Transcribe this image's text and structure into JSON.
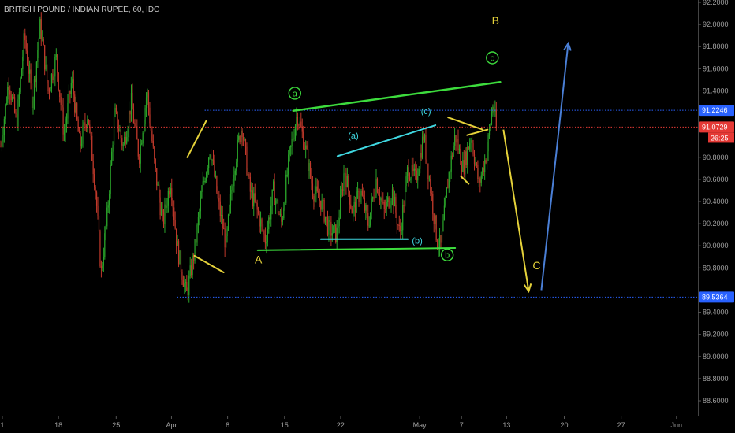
{
  "header": {
    "title": "BRITISH POUND / INDIAN RUPEE, 60, IDC"
  },
  "chart_data": {
    "type": "candlestick",
    "title": "BRITISH POUND / INDIAN RUPEE, 60, IDC",
    "ylim": [
      88.55,
      92.2
    ],
    "xlim": [
      0,
      88
    ],
    "y_ticks": [
      {
        "v": 92.2,
        "label": "92.2000"
      },
      {
        "v": 92.0,
        "label": "92.0000"
      },
      {
        "v": 91.8,
        "label": "91.8000"
      },
      {
        "v": 91.6,
        "label": "91.6000"
      },
      {
        "v": 91.4,
        "label": "91.4000"
      },
      {
        "v": 90.8,
        "label": "90.8000"
      },
      {
        "v": 90.6,
        "label": "90.6000"
      },
      {
        "v": 90.4,
        "label": "90.4000"
      },
      {
        "v": 90.2,
        "label": "90.2000"
      },
      {
        "v": 90.0,
        "label": "90.0000"
      },
      {
        "v": 89.8,
        "label": "89.8000"
      },
      {
        "v": 89.4,
        "label": "89.4000"
      },
      {
        "v": 89.2,
        "label": "89.2000"
      },
      {
        "v": 89.0,
        "label": "89.0000"
      },
      {
        "v": 88.8,
        "label": "88.8000"
      },
      {
        "v": 88.6,
        "label": "88.6000"
      }
    ],
    "x_ticks": [
      {
        "d": 0.2,
        "label": "1"
      },
      {
        "d": 7.3,
        "label": "18"
      },
      {
        "d": 14.6,
        "label": "25"
      },
      {
        "d": 21.6,
        "label": "Apr"
      },
      {
        "d": 28.7,
        "label": "8"
      },
      {
        "d": 35.9,
        "label": "15"
      },
      {
        "d": 43.0,
        "label": "22"
      },
      {
        "d": 53.0,
        "label": "May"
      },
      {
        "d": 58.3,
        "label": "7"
      },
      {
        "d": 64.0,
        "label": "13"
      },
      {
        "d": 71.3,
        "label": "20"
      },
      {
        "d": 78.5,
        "label": "27"
      },
      {
        "d": 85.5,
        "label": "Jun"
      }
    ],
    "price_lines": [
      {
        "name": "level-upper",
        "price": 91.2246,
        "label": "91.2246",
        "color": "#2962ff",
        "tag": "#2962ff",
        "x_from": 25.8
      },
      {
        "name": "level-current",
        "price": 91.0729,
        "label": "91.0729",
        "color": "#e53935",
        "tag": "#e53935",
        "x_from": 0
      },
      {
        "name": "level-lower",
        "price": 89.5364,
        "label": "89.5364",
        "color": "#2962ff",
        "tag": "#2962ff",
        "x_from": 22.3
      }
    ],
    "countdown": "26:25",
    "series": [
      {
        "anchors": [
          [
            0,
            90.9
          ],
          [
            1,
            91.5
          ],
          [
            2,
            91.1
          ],
          [
            3,
            91.9
          ],
          [
            4,
            91.3
          ],
          [
            5,
            92.0
          ],
          [
            6,
            91.4
          ],
          [
            7,
            91.7
          ],
          [
            8,
            91.0
          ],
          [
            9,
            91.5
          ],
          [
            10,
            90.9
          ],
          [
            11,
            91.2
          ],
          [
            12,
            90.5
          ],
          [
            12.7,
            89.75
          ],
          [
            13.5,
            90.3
          ],
          [
            14.4,
            91.2
          ],
          [
            15.5,
            90.9
          ],
          [
            16.5,
            91.3
          ],
          [
            17.5,
            90.8
          ],
          [
            18.5,
            91.4
          ],
          [
            19.5,
            90.7
          ],
          [
            20.5,
            90.2
          ],
          [
            21.5,
            90.6
          ],
          [
            22.3,
            90.0
          ],
          [
            23.5,
            89.55
          ],
          [
            24.5,
            89.95
          ],
          [
            25.5,
            90.5
          ],
          [
            26.5,
            90.9
          ],
          [
            27.5,
            90.4
          ],
          [
            28.5,
            90.0
          ],
          [
            29.5,
            90.7
          ],
          [
            30.5,
            91.1
          ],
          [
            31.5,
            90.5
          ],
          [
            32.5,
            90.3
          ],
          [
            33.5,
            90.05
          ],
          [
            34.5,
            90.5
          ],
          [
            35.5,
            90.2
          ],
          [
            36.5,
            90.8
          ],
          [
            37.5,
            91.2
          ],
          [
            38.5,
            90.9
          ],
          [
            39.5,
            90.5
          ],
          [
            40.5,
            90.4
          ],
          [
            41.5,
            90.15
          ],
          [
            42.5,
            90.1
          ],
          [
            43.5,
            90.7
          ],
          [
            44.5,
            90.3
          ],
          [
            45.5,
            90.5
          ],
          [
            46.5,
            90.2
          ],
          [
            47.5,
            90.6
          ],
          [
            48.5,
            90.3
          ],
          [
            49.5,
            90.5
          ],
          [
            50.5,
            90.1
          ],
          [
            51.5,
            90.7
          ],
          [
            52.5,
            90.6
          ],
          [
            53.5,
            91.0
          ],
          [
            54.5,
            90.45
          ],
          [
            55.2,
            90.05
          ],
          [
            55.7,
            89.99
          ],
          [
            56.6,
            90.6
          ],
          [
            57.5,
            91.0
          ],
          [
            58.5,
            90.7
          ],
          [
            59.5,
            91.0
          ],
          [
            60.5,
            90.55
          ],
          [
            61.5,
            90.85
          ],
          [
            62.3,
            91.3
          ],
          [
            62.7,
            91.05
          ]
        ]
      }
    ],
    "annotations": [
      {
        "name": "wave-label-A",
        "text": "A",
        "x": 32.6,
        "y": 89.84,
        "color": "#e5d23a",
        "size": "big"
      },
      {
        "name": "wave-label-B",
        "text": "B",
        "x": 62.6,
        "y": 92.0,
        "color": "#e5d23a",
        "size": "big"
      },
      {
        "name": "wave-label-C",
        "text": "C",
        "x": 67.8,
        "y": 89.79,
        "color": "#e5d23a",
        "size": "big"
      },
      {
        "name": "wave-label-a-circle",
        "text": "a",
        "x": 37.2,
        "y": 91.35,
        "color": "#3ddc3d",
        "size": "small",
        "circle": true
      },
      {
        "name": "wave-label-b-circle",
        "text": "b",
        "x": 56.5,
        "y": 89.89,
        "color": "#3ddc3d",
        "size": "small",
        "circle": true
      },
      {
        "name": "wave-label-c-circle",
        "text": "c",
        "x": 62.2,
        "y": 91.67,
        "color": "#3ddc3d",
        "size": "small",
        "circle": true
      },
      {
        "name": "wave-label-paren-a",
        "text": "(a)",
        "x": 44.6,
        "y": 90.97,
        "color": "#3fd7e0",
        "size": "small"
      },
      {
        "name": "wave-label-paren-b",
        "text": "(b)",
        "x": 52.7,
        "y": 90.02,
        "color": "#3fd7e0",
        "size": "small"
      },
      {
        "name": "wave-label-paren-c",
        "text": "(c)",
        "x": 53.8,
        "y": 91.19,
        "color": "#3fd7e0",
        "size": "small"
      }
    ],
    "trendlines": [
      {
        "name": "green-upper-line",
        "color": "#3ddc3d",
        "width": 2.5,
        "pts": [
          [
            37.0,
            91.22
          ],
          [
            63.2,
            91.48
          ]
        ]
      },
      {
        "name": "green-lower-line",
        "color": "#3ddc3d",
        "width": 2,
        "pts": [
          [
            32.5,
            89.96
          ],
          [
            57.5,
            89.98
          ]
        ]
      },
      {
        "name": "cyan-upper-line",
        "color": "#3fd7e0",
        "width": 2,
        "pts": [
          [
            42.6,
            90.81
          ],
          [
            55.0,
            91.09
          ]
        ]
      },
      {
        "name": "cyan-lower-line",
        "color": "#3fd7e0",
        "width": 2,
        "pts": [
          [
            40.5,
            90.06
          ],
          [
            51.5,
            90.06
          ]
        ]
      },
      {
        "name": "yellow-wedge-up",
        "color": "#e5d23a",
        "width": 2,
        "pts": [
          [
            23.6,
            90.8
          ],
          [
            26.0,
            91.13
          ]
        ]
      },
      {
        "name": "yellow-wedge-down",
        "color": "#e5d23a",
        "width": 2,
        "pts": [
          [
            24.5,
            89.91
          ],
          [
            28.2,
            89.76
          ]
        ]
      },
      {
        "name": "yellow-small-1",
        "color": "#e5d23a",
        "width": 2,
        "pts": [
          [
            56.6,
            91.16
          ],
          [
            61.0,
            91.05
          ]
        ]
      },
      {
        "name": "yellow-small-2",
        "color": "#e5d23a",
        "width": 2,
        "pts": [
          [
            59.0,
            91.0
          ],
          [
            61.6,
            91.05
          ]
        ]
      },
      {
        "name": "yellow-small-3",
        "color": "#e5d23a",
        "width": 2,
        "pts": [
          [
            58.2,
            90.63
          ],
          [
            59.2,
            90.56
          ]
        ]
      }
    ],
    "arrows": [
      {
        "name": "yellow-projection-arrow",
        "color": "#e5d23a",
        "width": 2,
        "pts": [
          [
            63.6,
            91.05
          ],
          [
            66.8,
            89.59
          ]
        ]
      },
      {
        "name": "blue-projection-arrow",
        "color": "#4a7fd6",
        "width": 2,
        "pts": [
          [
            68.4,
            89.6
          ],
          [
            71.8,
            91.83
          ]
        ]
      }
    ]
  }
}
